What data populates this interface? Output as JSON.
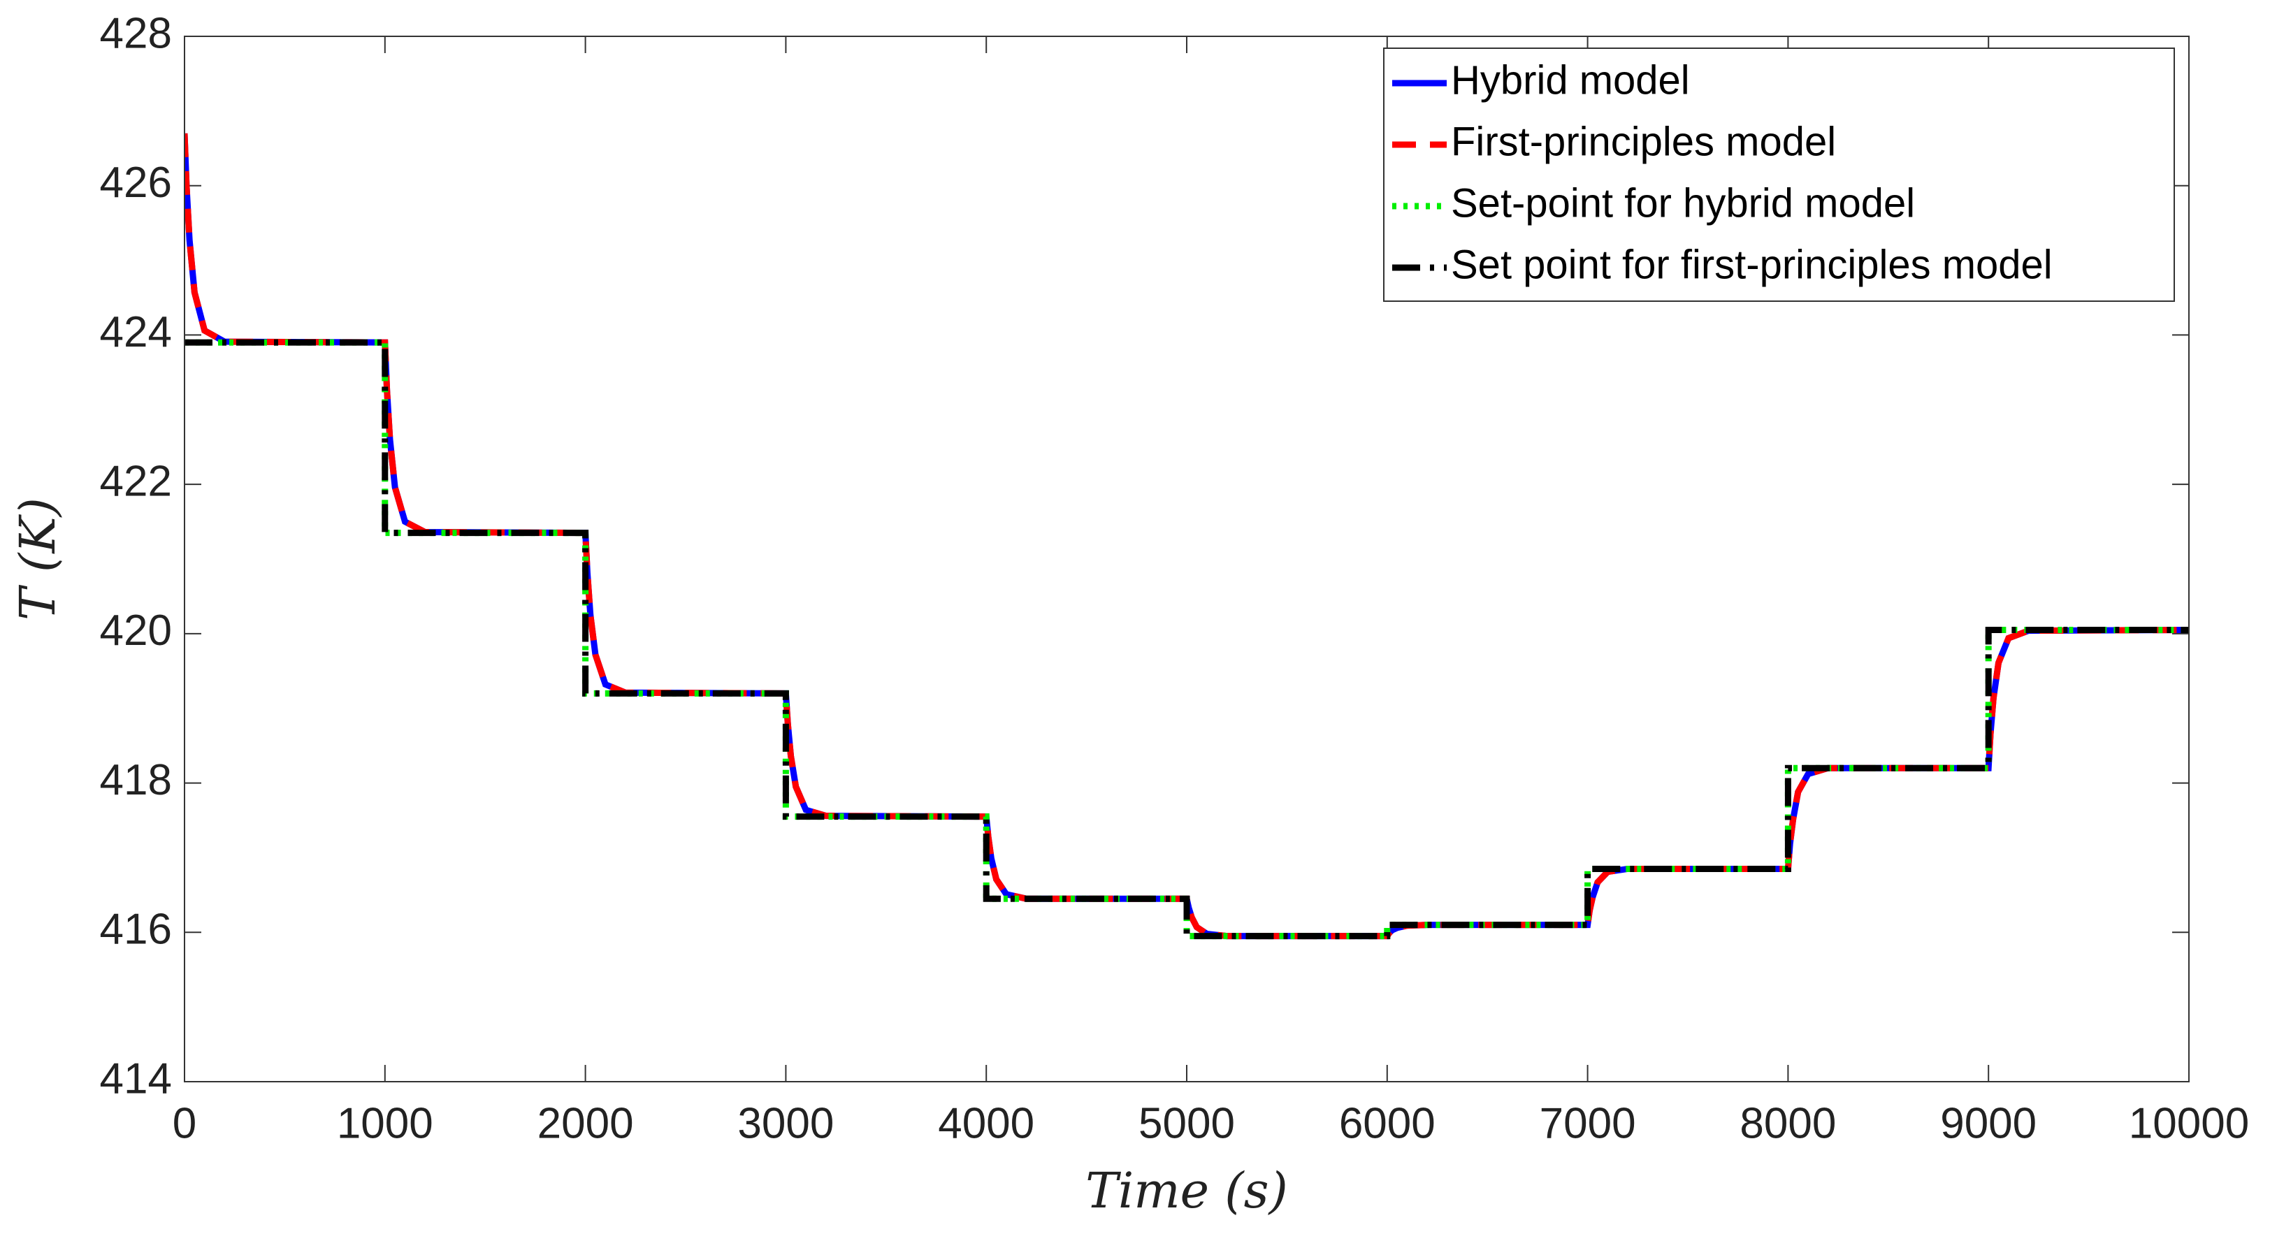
{
  "chart_data": {
    "type": "line",
    "xlabel": "Time (s)",
    "ylabel": "T (K)",
    "xlim": [
      0,
      10000
    ],
    "xticks": [
      0,
      1000,
      2000,
      3000,
      4000,
      5000,
      6000,
      7000,
      8000,
      9000,
      10000
    ],
    "ylim": [
      414,
      428
    ],
    "yticks": [
      414,
      416,
      418,
      420,
      422,
      424,
      426,
      428
    ],
    "grid": false,
    "legend": "top-right",
    "series": [
      {
        "name": "Hybrid model",
        "color": "#0000ff",
        "style": "solid",
        "x": [
          0,
          10,
          25,
          50,
          100,
          200,
          1000,
          1010,
          1025,
          1050,
          1100,
          1200,
          2000,
          2010,
          2025,
          2050,
          2100,
          2200,
          3000,
          3010,
          3025,
          3050,
          3100,
          3200,
          4000,
          4010,
          4025,
          4050,
          4100,
          4200,
          5000,
          5010,
          5025,
          5050,
          5100,
          5200,
          6000,
          6010,
          6025,
          6050,
          6100,
          6200,
          7000,
          7010,
          7025,
          7050,
          7100,
          7200,
          8000,
          8010,
          8025,
          8050,
          8100,
          8200,
          9000,
          9010,
          9025,
          9050,
          9100,
          9200,
          10000
        ],
        "values": [
          426.7,
          426.0,
          425.27,
          424.57,
          424.06,
          423.91,
          423.9,
          423.26,
          422.6,
          421.96,
          421.5,
          421.36,
          421.35,
          420.81,
          420.25,
          419.72,
          419.32,
          419.21,
          419.2,
          418.79,
          418.36,
          417.95,
          417.64,
          417.56,
          417.55,
          417.28,
          416.99,
          416.71,
          416.51,
          416.45,
          416.45,
          416.33,
          416.2,
          416.07,
          415.98,
          415.95,
          415.95,
          415.99,
          416.03,
          416.06,
          416.09,
          416.1,
          416.1,
          416.29,
          416.47,
          416.67,
          416.81,
          416.85,
          416.85,
          417.19,
          417.51,
          417.88,
          418.12,
          418.2,
          418.2,
          418.66,
          419.14,
          419.61,
          419.94,
          420.04,
          420.05
        ]
      },
      {
        "name": "First-principles model",
        "color": "#ff0000",
        "style": "dashed",
        "x": [
          0,
          10,
          25,
          50,
          100,
          200,
          1000,
          1010,
          1025,
          1050,
          1100,
          1200,
          2000,
          2010,
          2025,
          2050,
          2100,
          2200,
          3000,
          3010,
          3025,
          3050,
          3100,
          3200,
          4000,
          4010,
          4025,
          4050,
          4100,
          4200,
          5000,
          5010,
          5025,
          5050,
          5100,
          5200,
          6000,
          6010,
          6025,
          6050,
          6100,
          6200,
          7000,
          7010,
          7025,
          7050,
          7100,
          7200,
          8000,
          8010,
          8025,
          8050,
          8100,
          8200,
          9000,
          9010,
          9025,
          9050,
          9100,
          9200,
          10000
        ],
        "values": [
          426.7,
          426.0,
          425.27,
          424.57,
          424.06,
          423.91,
          423.9,
          423.26,
          422.6,
          421.96,
          421.5,
          421.36,
          421.35,
          420.81,
          420.25,
          419.72,
          419.32,
          419.21,
          419.2,
          418.79,
          418.36,
          417.95,
          417.64,
          417.56,
          417.55,
          417.28,
          416.99,
          416.71,
          416.51,
          416.45,
          416.45,
          416.33,
          416.2,
          416.07,
          415.98,
          415.95,
          415.95,
          415.99,
          416.03,
          416.06,
          416.09,
          416.1,
          416.1,
          416.29,
          416.47,
          416.67,
          416.81,
          416.85,
          416.85,
          417.19,
          417.51,
          417.88,
          418.12,
          418.2,
          418.2,
          418.66,
          419.14,
          419.61,
          419.94,
          420.04,
          420.05
        ]
      },
      {
        "name": "Set-point for hybrid model",
        "color": "#00ee00",
        "style": "dotted",
        "x": [
          0,
          1000,
          1000,
          2000,
          2000,
          3000,
          3000,
          4000,
          4000,
          5000,
          5000,
          6000,
          6000,
          7000,
          7000,
          8000,
          8000,
          9000,
          9000,
          10000
        ],
        "values": [
          423.9,
          423.9,
          421.35,
          421.35,
          419.2,
          419.2,
          417.55,
          417.55,
          416.45,
          416.45,
          415.95,
          415.95,
          416.1,
          416.1,
          416.85,
          416.85,
          418.2,
          418.2,
          420.05,
          420.05
        ]
      },
      {
        "name": "Set point for first-principles model",
        "color": "#000000",
        "style": "dashdot",
        "x": [
          0,
          1000,
          1000,
          2000,
          2000,
          3000,
          3000,
          4000,
          4000,
          5000,
          5000,
          6000,
          6000,
          7000,
          7000,
          8000,
          8000,
          9000,
          9000,
          10000
        ],
        "values": [
          423.9,
          423.9,
          421.35,
          421.35,
          419.2,
          419.2,
          417.55,
          417.55,
          416.45,
          416.45,
          415.95,
          415.95,
          416.1,
          416.1,
          416.85,
          416.85,
          418.2,
          418.2,
          420.05,
          420.05
        ]
      }
    ]
  }
}
